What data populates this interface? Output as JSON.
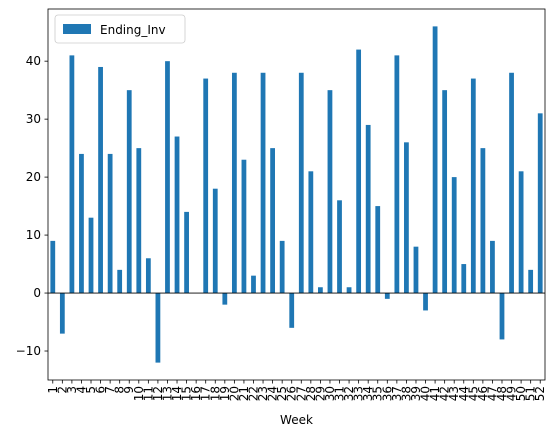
{
  "chart_data": {
    "type": "bar",
    "categories": [
      "1",
      "2",
      "3",
      "4",
      "5",
      "6",
      "7",
      "8",
      "9",
      "10",
      "11",
      "12",
      "13",
      "14",
      "15",
      "16",
      "17",
      "18",
      "19",
      "20",
      "21",
      "22",
      "23",
      "24",
      "25",
      "26",
      "27",
      "28",
      "29",
      "30",
      "31",
      "32",
      "33",
      "34",
      "35",
      "36",
      "37",
      "38",
      "39",
      "40",
      "41",
      "42",
      "43",
      "44",
      "45",
      "46",
      "47",
      "48",
      "49",
      "50",
      "51",
      "52"
    ],
    "series": [
      {
        "name": "Ending_Inv",
        "color": "#1f77b4",
        "values": [
          9,
          -7,
          41,
          24,
          13,
          39,
          24,
          4,
          35,
          25,
          6,
          -12,
          40,
          27,
          14,
          0,
          37,
          18,
          -2,
          38,
          23,
          3,
          38,
          25,
          9,
          -6,
          38,
          21,
          1,
          35,
          16,
          1,
          42,
          29,
          15,
          -1,
          41,
          26,
          8,
          -3,
          46,
          35,
          20,
          5,
          37,
          25,
          9,
          -8,
          38,
          21,
          4,
          31
        ]
      }
    ],
    "title": "",
    "xlabel": "Week",
    "ylabel": "",
    "ylim": [
      -15,
      49
    ],
    "yticks": [
      -10,
      0,
      10,
      20,
      30,
      40
    ],
    "grid": false,
    "legend_position": "upper-left",
    "zero_line": true
  }
}
